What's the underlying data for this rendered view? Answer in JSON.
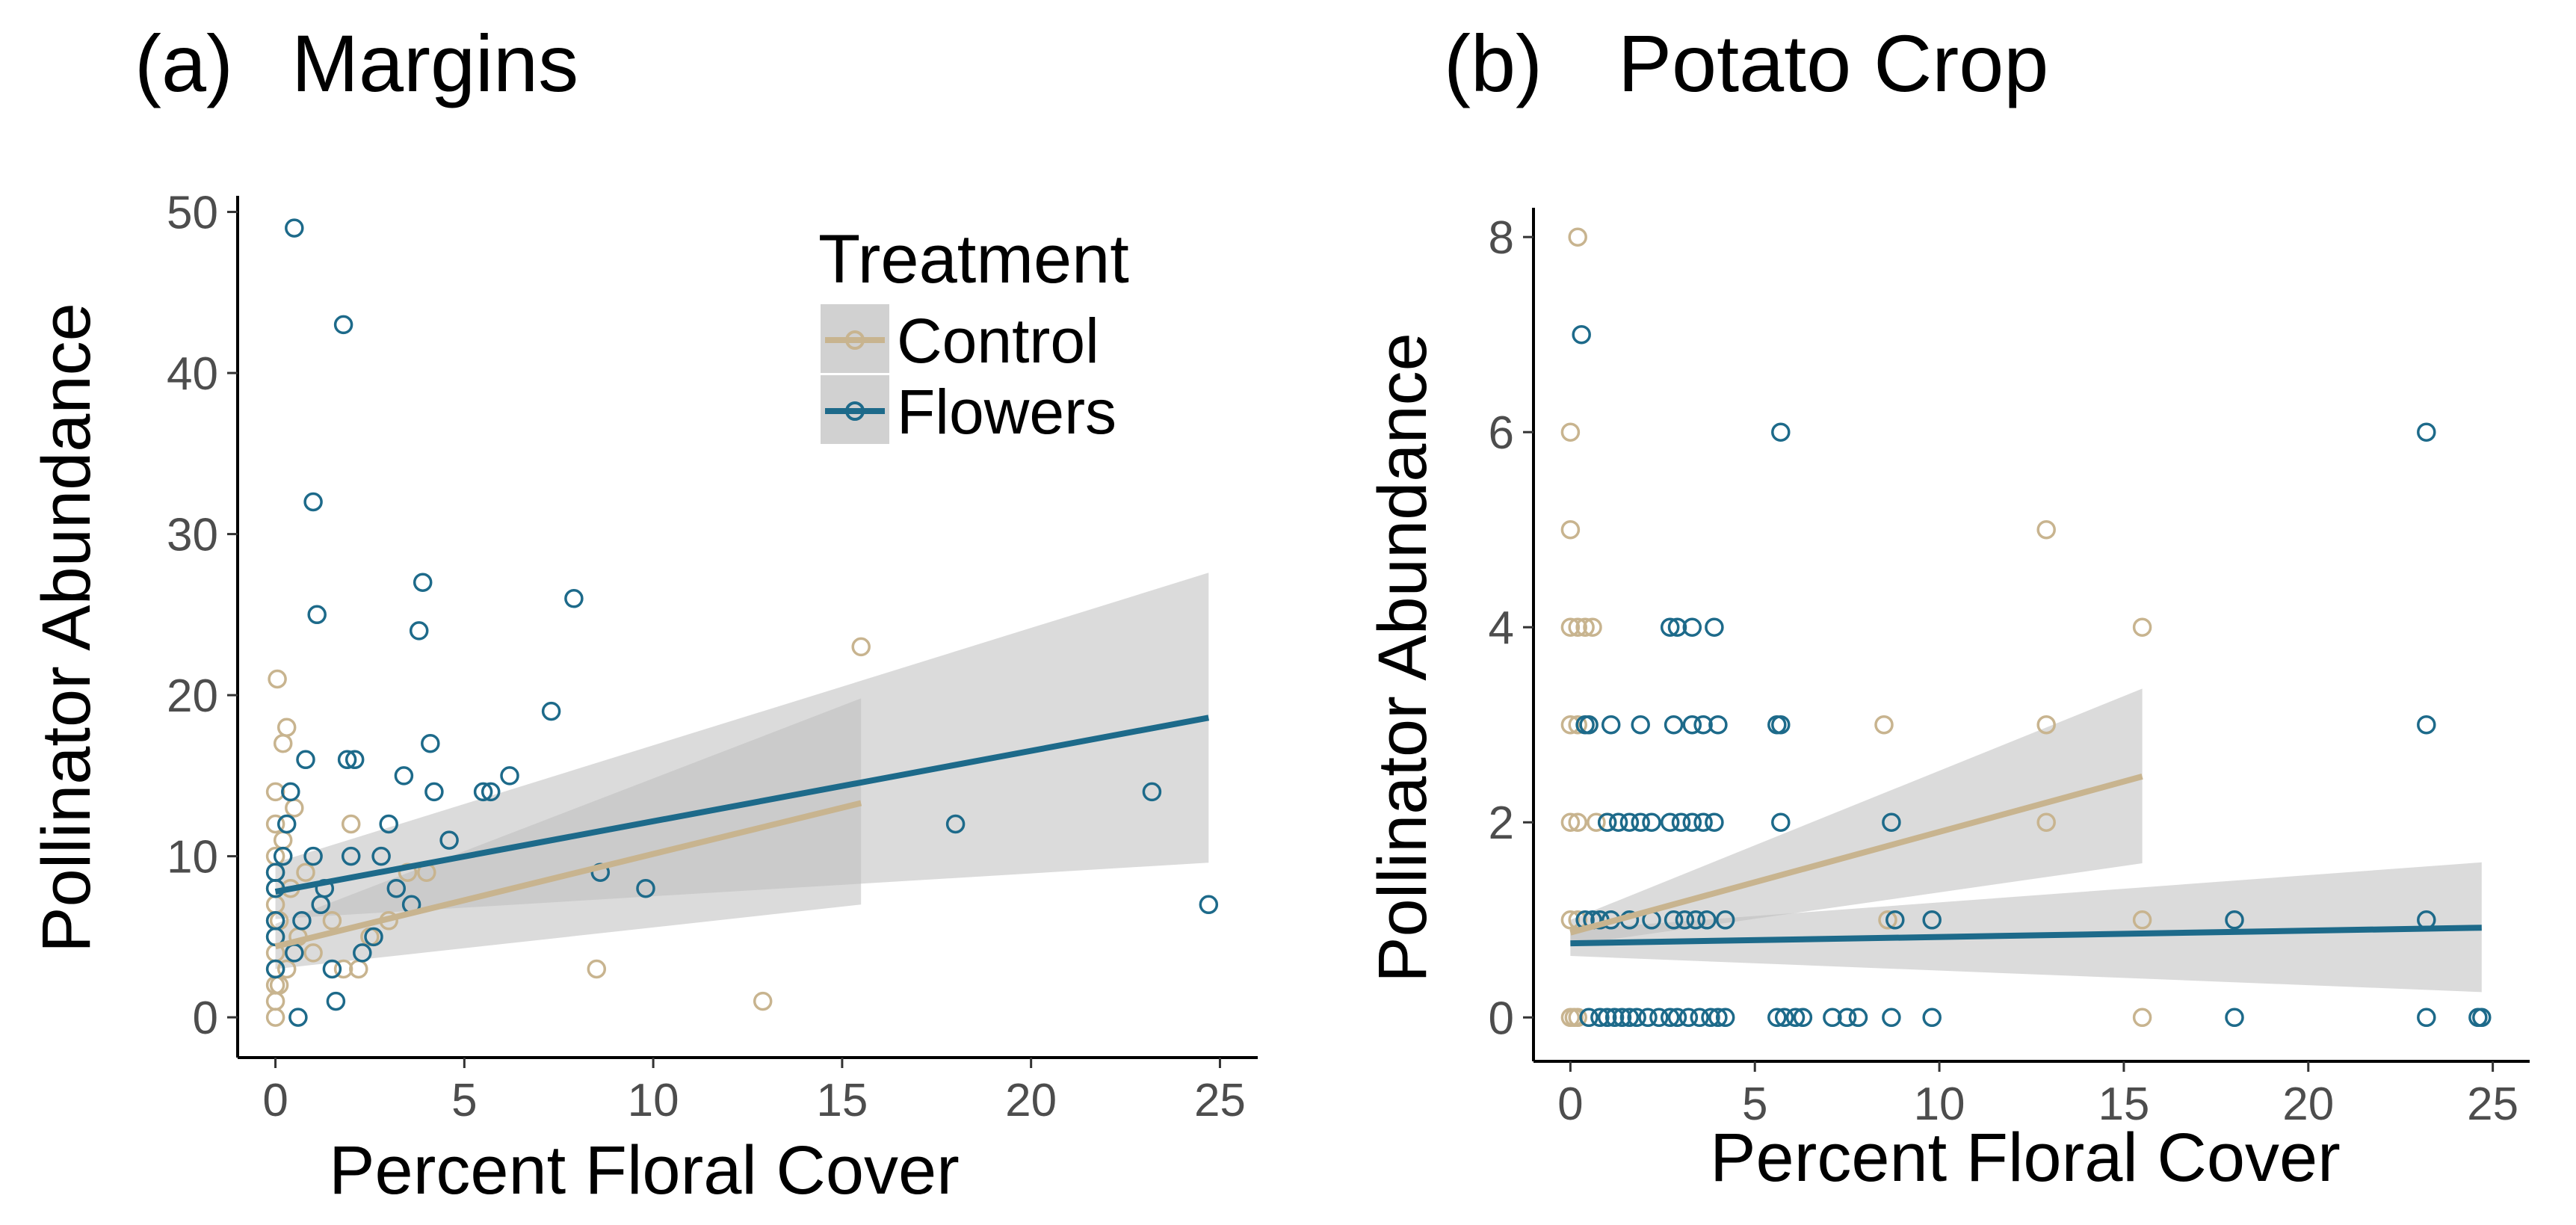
{
  "colors": {
    "control": "#c8b48f",
    "flowers": "#1d6a8a",
    "band": "#bebebe",
    "axis": "#000000",
    "tick_text": "#4d4d4d"
  },
  "legend": {
    "title": "Treatment",
    "items": [
      {
        "key": "control",
        "label": "Control"
      },
      {
        "key": "flowers",
        "label": "Flowers"
      }
    ]
  },
  "chart_data": [
    {
      "type": "scatter",
      "panel": "(a)",
      "title": "Margins",
      "xlabel": "Percent Floral Cover",
      "ylabel": "Pollinator Abundance",
      "xlim": [
        -1,
        26
      ],
      "ylim": [
        -2.5,
        51
      ],
      "xticks": [
        0,
        5,
        10,
        15,
        20,
        25
      ],
      "yticks": [
        0,
        10,
        20,
        30,
        40,
        50
      ],
      "grid": false,
      "legend_position": "top-right",
      "series": [
        {
          "name": "Control",
          "color_key": "control",
          "points": [
            [
              0,
              0
            ],
            [
              0,
              1
            ],
            [
              0,
              2
            ],
            [
              0,
              3
            ],
            [
              0,
              4
            ],
            [
              0,
              5
            ],
            [
              0,
              6
            ],
            [
              0,
              7
            ],
            [
              0,
              8
            ],
            [
              0,
              9
            ],
            [
              0,
              10
            ],
            [
              0,
              12
            ],
            [
              0,
              14
            ],
            [
              0.05,
              21
            ],
            [
              0.1,
              2
            ],
            [
              0.1,
              6
            ],
            [
              0.2,
              11
            ],
            [
              0.2,
              17
            ],
            [
              0.3,
              18
            ],
            [
              0.3,
              3
            ],
            [
              0.4,
              8
            ],
            [
              0.5,
              13
            ],
            [
              0.6,
              5
            ],
            [
              0.8,
              9
            ],
            [
              1.0,
              4
            ],
            [
              1.2,
              7
            ],
            [
              1.5,
              6
            ],
            [
              1.8,
              3
            ],
            [
              2.0,
              12
            ],
            [
              2.2,
              3
            ],
            [
              2.5,
              5
            ],
            [
              3.0,
              6
            ],
            [
              3.5,
              9
            ],
            [
              4.0,
              9
            ],
            [
              8.5,
              3
            ],
            [
              12.9,
              1
            ],
            [
              15.5,
              23
            ]
          ],
          "fit": {
            "x0": 0,
            "x1": 15.5,
            "y0": 4.4,
            "y1": 13.3,
            "ci_low": [
              3.0,
              7.0
            ],
            "ci_high": [
              5.8,
              19.8
            ]
          }
        },
        {
          "name": "Flowers",
          "color_key": "flowers",
          "points": [
            [
              0,
              3
            ],
            [
              0,
              5
            ],
            [
              0,
              6
            ],
            [
              0,
              8
            ],
            [
              0,
              9
            ],
            [
              0.2,
              10
            ],
            [
              0.3,
              12
            ],
            [
              0.4,
              14
            ],
            [
              0.5,
              49
            ],
            [
              0.5,
              4
            ],
            [
              0.6,
              0
            ],
            [
              0.7,
              6
            ],
            [
              0.8,
              16
            ],
            [
              1.0,
              10
            ],
            [
              1.0,
              32
            ],
            [
              1.1,
              25
            ],
            [
              1.2,
              7
            ],
            [
              1.3,
              8
            ],
            [
              1.5,
              3
            ],
            [
              1.6,
              1
            ],
            [
              1.8,
              43
            ],
            [
              1.9,
              16
            ],
            [
              2.0,
              10
            ],
            [
              2.1,
              16
            ],
            [
              2.3,
              4
            ],
            [
              2.6,
              5
            ],
            [
              2.8,
              10
            ],
            [
              3.0,
              12
            ],
            [
              3.2,
              8
            ],
            [
              3.4,
              15
            ],
            [
              3.6,
              7
            ],
            [
              3.8,
              24
            ],
            [
              3.9,
              27
            ],
            [
              4.1,
              17
            ],
            [
              4.2,
              14
            ],
            [
              4.6,
              11
            ],
            [
              5.5,
              14
            ],
            [
              5.7,
              14
            ],
            [
              6.2,
              15
            ],
            [
              7.3,
              19
            ],
            [
              7.9,
              26
            ],
            [
              8.6,
              9
            ],
            [
              9.8,
              8
            ],
            [
              18.0,
              12
            ],
            [
              23.2,
              14
            ],
            [
              24.7,
              7
            ]
          ],
          "fit": {
            "x0": 0,
            "x1": 24.7,
            "y0": 7.8,
            "y1": 18.6,
            "ci_low": [
              6.1,
              9.6
            ],
            "ci_high": [
              9.6,
              27.6
            ]
          }
        }
      ]
    },
    {
      "type": "scatter",
      "panel": "(b)",
      "title": "Potato Crop",
      "xlabel": "Percent Floral Cover",
      "ylabel": "Pollinator Abundance",
      "xlim": [
        -1,
        26
      ],
      "ylim": [
        -0.45,
        8.3
      ],
      "xticks": [
        0,
        5,
        10,
        15,
        20,
        25
      ],
      "yticks": [
        0,
        2,
        4,
        6,
        8
      ],
      "grid": false,
      "series": [
        {
          "name": "Control",
          "color_key": "control",
          "points": [
            [
              0,
              0
            ],
            [
              0.1,
              0
            ],
            [
              0.2,
              0
            ],
            [
              0,
              1
            ],
            [
              0.2,
              1
            ],
            [
              0,
              2
            ],
            [
              0.2,
              2
            ],
            [
              0,
              3
            ],
            [
              0.2,
              3
            ],
            [
              0,
              4
            ],
            [
              0.2,
              4
            ],
            [
              0.4,
              4
            ],
            [
              0.6,
              4
            ],
            [
              0,
              5
            ],
            [
              0,
              6
            ],
            [
              0.2,
              8
            ],
            [
              0.5,
              3
            ],
            [
              0.7,
              2
            ],
            [
              1.0,
              2
            ],
            [
              8.5,
              3
            ],
            [
              8.6,
              1
            ],
            [
              12.9,
              5
            ],
            [
              12.9,
              3
            ],
            [
              12.9,
              2
            ],
            [
              15.5,
              4
            ],
            [
              15.5,
              1
            ],
            [
              15.5,
              0
            ]
          ],
          "fit": {
            "x0": 0,
            "x1": 15.5,
            "y0": 0.87,
            "y1": 2.47,
            "ci_low": [
              0.74,
              1.58
            ],
            "ci_high": [
              1.0,
              3.37
            ]
          }
        },
        {
          "name": "Flowers",
          "color_key": "flowers",
          "points": [
            [
              0.3,
              7
            ],
            [
              0.4,
              3
            ],
            [
              0.5,
              3
            ],
            [
              0.4,
              1
            ],
            [
              0.6,
              1
            ],
            [
              0.8,
              1
            ],
            [
              0.5,
              0
            ],
            [
              0.8,
              0
            ],
            [
              1.0,
              0
            ],
            [
              1.2,
              0
            ],
            [
              1.4,
              0
            ],
            [
              1.6,
              0
            ],
            [
              1.8,
              0
            ],
            [
              2.1,
              0
            ],
            [
              2.4,
              0
            ],
            [
              2.7,
              0
            ],
            [
              2.9,
              0
            ],
            [
              3.2,
              0
            ],
            [
              3.5,
              0
            ],
            [
              3.8,
              0
            ],
            [
              4.0,
              0
            ],
            [
              4.2,
              0
            ],
            [
              1.0,
              2
            ],
            [
              1.3,
              2
            ],
            [
              1.6,
              2
            ],
            [
              1.9,
              2
            ],
            [
              2.2,
              2
            ],
            [
              2.7,
              2
            ],
            [
              3.0,
              2
            ],
            [
              3.3,
              2
            ],
            [
              3.6,
              2
            ],
            [
              3.9,
              2
            ],
            [
              1.1,
              3
            ],
            [
              1.9,
              3
            ],
            [
              2.8,
              3
            ],
            [
              3.3,
              3
            ],
            [
              3.6,
              3
            ],
            [
              4.0,
              3
            ],
            [
              2.7,
              4
            ],
            [
              2.9,
              4
            ],
            [
              3.3,
              4
            ],
            [
              3.9,
              4
            ],
            [
              1.1,
              1
            ],
            [
              1.6,
              1
            ],
            [
              2.2,
              1
            ],
            [
              2.8,
              1
            ],
            [
              3.1,
              1
            ],
            [
              3.4,
              1
            ],
            [
              3.7,
              1
            ],
            [
              4.2,
              1
            ],
            [
              5.7,
              6
            ],
            [
              5.6,
              3
            ],
            [
              5.7,
              3
            ],
            [
              5.7,
              2
            ],
            [
              5.6,
              0
            ],
            [
              5.8,
              0
            ],
            [
              6.1,
              0
            ],
            [
              6.3,
              0
            ],
            [
              7.1,
              0
            ],
            [
              7.5,
              0
            ],
            [
              7.8,
              0
            ],
            [
              8.7,
              0
            ],
            [
              9.8,
              0
            ],
            [
              8.7,
              2
            ],
            [
              8.8,
              1
            ],
            [
              9.8,
              1
            ],
            [
              18.0,
              1
            ],
            [
              18.0,
              0
            ],
            [
              23.2,
              6
            ],
            [
              23.2,
              3
            ],
            [
              23.2,
              1
            ],
            [
              23.2,
              0
            ],
            [
              24.6,
              0
            ],
            [
              24.7,
              0
            ]
          ],
          "fit": {
            "x0": 0,
            "x1": 24.7,
            "y0": 0.76,
            "y1": 0.92,
            "ci_low": [
              0.63,
              0.26
            ],
            "ci_high": [
              0.9,
              1.59
            ]
          }
        }
      ]
    }
  ]
}
